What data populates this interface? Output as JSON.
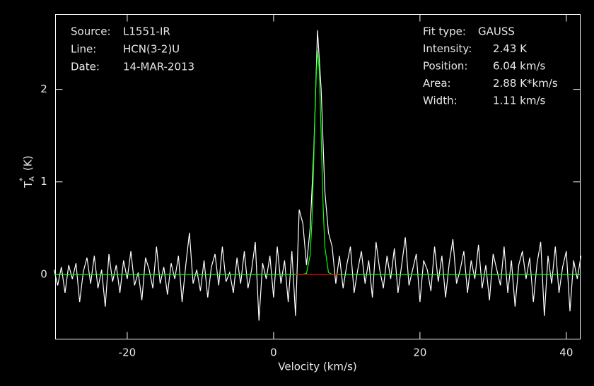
{
  "chart_data": {
    "type": "line",
    "xlabel": "Velocity (km/s)",
    "ylabel": {
      "main": "T",
      "sub": "A",
      "sup": "*",
      "unit": "(K)"
    },
    "annotations_left": [
      {
        "label": "Source:",
        "value": "L1551-IR"
      },
      {
        "label": "Line:",
        "value": "HCN(3-2)U"
      },
      {
        "label": "Date:",
        "value": "14-MAR-2013"
      }
    ],
    "annotations_right": [
      {
        "label": "Fit type:",
        "value": "GAUSS"
      },
      {
        "label": "Intensity:",
        "value": "2.43 K"
      },
      {
        "label": "Position:",
        "value": "6.04 km/s"
      },
      {
        "label": "Area:",
        "value": "2.88 K*km/s"
      },
      {
        "label": "Width:",
        "value": "1.11 km/s"
      }
    ],
    "xlim": [
      -29.8,
      41.9
    ],
    "xticks": [
      -20,
      0,
      20,
      40
    ],
    "ylim": [
      -0.7,
      2.81
    ],
    "yticks": [
      0,
      1,
      2
    ],
    "series": [
      {
        "color": "#ffffff",
        "x": [
          -30,
          -29.5,
          -29,
          -28.5,
          -28,
          -27.5,
          -27,
          -26.5,
          -26,
          -25.5,
          -25,
          -24.5,
          -24,
          -23.5,
          -23,
          -22.5,
          -22,
          -21.5,
          -21,
          -20.5,
          -20,
          -19.5,
          -19,
          -18.5,
          -18,
          -17.5,
          -17,
          -16.5,
          -16,
          -15.5,
          -15,
          -14.5,
          -14,
          -13.5,
          -13,
          -12.5,
          -12,
          -11.5,
          -11,
          -10.5,
          -10,
          -9.5,
          -9,
          -8.5,
          -8,
          -7.5,
          -7,
          -6.5,
          -6,
          -5.5,
          -5,
          -4.5,
          -4,
          -3.5,
          -3,
          -2.5,
          -2,
          -1.5,
          -1,
          -0.5,
          0,
          0.5,
          1,
          1.5,
          2,
          2.5,
          3,
          3.5,
          4,
          4.5,
          5,
          5.5,
          6,
          6.5,
          7,
          7.5,
          8,
          8.5,
          9,
          9.5,
          10,
          10.5,
          11,
          11.5,
          12,
          12.5,
          13,
          13.5,
          14,
          14.5,
          15,
          15.5,
          16,
          16.5,
          17,
          17.5,
          18,
          18.5,
          19,
          19.5,
          20,
          20.5,
          21,
          21.5,
          22,
          22.5,
          23,
          23.5,
          24,
          24.5,
          25,
          25.5,
          26,
          26.5,
          27,
          27.5,
          28,
          28.5,
          29,
          29.5,
          30,
          30.5,
          31,
          31.5,
          32,
          32.5,
          33,
          33.5,
          34,
          34.5,
          35,
          35.5,
          36,
          36.5,
          37,
          37.5,
          38,
          38.5,
          39,
          39.5,
          40,
          40.5,
          41,
          41.5,
          42
        ],
        "values": [
          0.05,
          -0.12,
          0.08,
          -0.2,
          0.1,
          -0.05,
          0.12,
          -0.3,
          0.03,
          0.18,
          -0.1,
          0.2,
          -0.15,
          0.05,
          -0.35,
          0.22,
          -0.08,
          0.1,
          -0.2,
          0.15,
          -0.05,
          0.25,
          -0.12,
          0.02,
          -0.28,
          0.18,
          0.05,
          -0.15,
          0.3,
          -0.1,
          0.08,
          -0.22,
          0.12,
          -0.05,
          0.2,
          -0.3,
          0.1,
          0.45,
          -0.1,
          0.05,
          -0.18,
          0.15,
          -0.25,
          0.08,
          0.22,
          -0.12,
          0.3,
          -0.08,
          0.02,
          -0.2,
          0.18,
          -0.1,
          0.25,
          -0.15,
          0.05,
          0.35,
          -0.5,
          0.12,
          -0.05,
          0.2,
          -0.25,
          0.3,
          -0.1,
          0.15,
          -0.3,
          0.25,
          -0.45,
          0.7,
          0.55,
          0.1,
          0.5,
          1.35,
          2.64,
          2.0,
          0.9,
          0.45,
          0.3,
          -0.1,
          0.2,
          -0.15,
          0.1,
          0.3,
          -0.2,
          0.05,
          0.25,
          -0.1,
          0.15,
          -0.25,
          0.35,
          0.05,
          -0.15,
          0.2,
          -0.05,
          0.28,
          -0.2,
          0.1,
          0.4,
          -0.12,
          0.05,
          0.22,
          -0.3,
          0.15,
          0.05,
          -0.18,
          0.3,
          -0.08,
          0.2,
          -0.25,
          0.12,
          0.38,
          -0.1,
          0.05,
          0.25,
          -0.2,
          0.15,
          -0.05,
          0.32,
          -0.15,
          0.1,
          -0.28,
          0.22,
          0.05,
          -0.12,
          0.3,
          -0.2,
          0.15,
          -0.35,
          0.1,
          0.25,
          -0.05,
          0.18,
          -0.3,
          0.12,
          0.35,
          -0.45,
          0.2,
          -0.1,
          0.3,
          -0.2,
          0.08,
          0.25,
          -0.4,
          0.15,
          -0.05,
          0.2
        ]
      },
      {
        "color": "#00ff00",
        "x": [
          -30,
          4,
          4.5,
          5,
          5.25,
          5.5,
          5.75,
          6,
          6.25,
          6.5,
          6.75,
          7,
          7.5,
          8,
          42
        ],
        "values": [
          0,
          0,
          0.01,
          0.21,
          0.59,
          1.26,
          2.01,
          2.42,
          2.2,
          1.51,
          0.78,
          0.3,
          0.02,
          0,
          0
        ]
      },
      {
        "color": "#ff0000",
        "x": [
          3,
          9
        ],
        "values": [
          0,
          0
        ]
      }
    ]
  }
}
